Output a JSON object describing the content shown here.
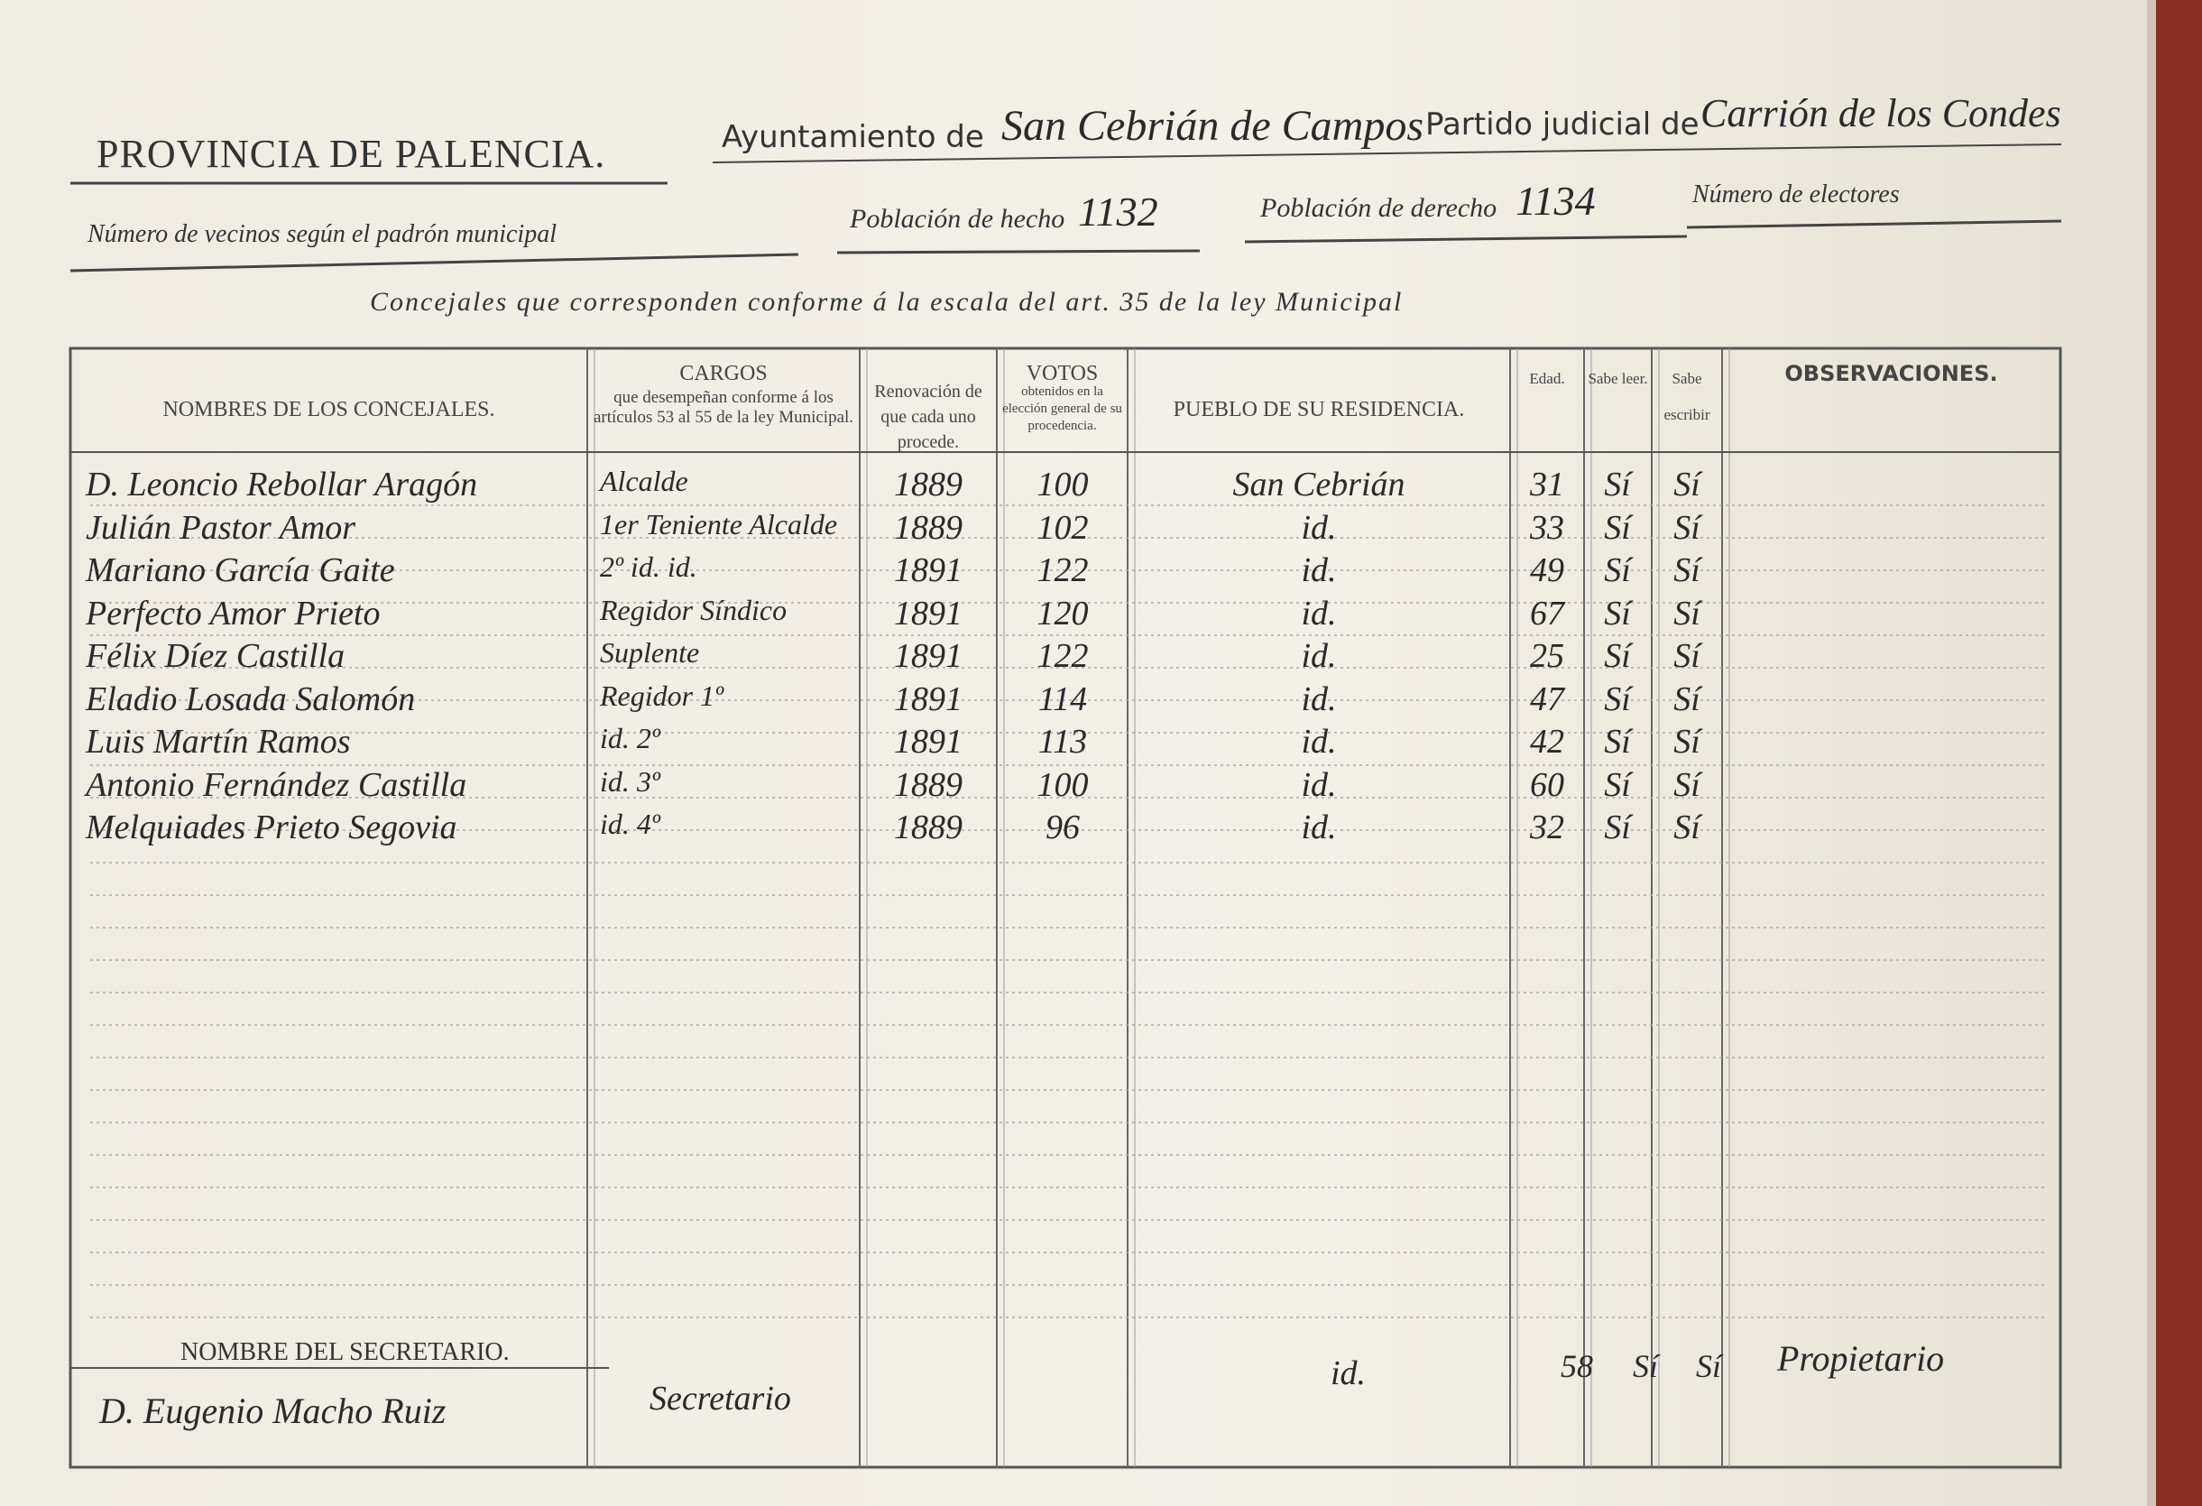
{
  "header": {
    "province": "PROVINCIA DE PALENCIA.",
    "ayuntamiento_label": "Ayuntamiento de",
    "ayuntamiento": "San Cebrián de Campos",
    "partido_label": "Partido judicial de",
    "partido": "Carrión de los Condes"
  },
  "census": {
    "vecinos_label": "Número de vecinos según el padrón municipal",
    "hecho_label": "Población de hecho",
    "hecho": "1132",
    "derecho_label": "Población de derecho",
    "derecho": "1134",
    "electores_label": "Número de electores"
  },
  "concejales_label": "Concejales que corresponden conforme á la escala del art. 35 de la ley Municipal",
  "table": {
    "columns": [
      {
        "title": "NOMBRES DE LOS CONCEJALES."
      },
      {
        "title": "CARGOS",
        "note": "que desempeñan conforme á los artículos 53 al 55 de la ley Municipal."
      },
      {
        "title": "Renovación de que cada uno procede."
      },
      {
        "title": "VOTOS",
        "note": "obtenidos en la elección general de su procedencia."
      },
      {
        "title": "PUEBLO DE SU RESIDENCIA."
      },
      {
        "title": "Edad."
      },
      {
        "title": "Sabe leer."
      },
      {
        "title": "Sabe escribir"
      },
      {
        "title": "OBSERVACIONES."
      }
    ],
    "rows": [
      [
        "D. Leoncio Rebollar Aragón",
        "Alcalde",
        "1889",
        "100",
        "San Cebrián",
        "31",
        "Sí",
        "Sí"
      ],
      [
        "Julián Pastor Amor",
        "1er Teniente Alcalde",
        "1889",
        "102",
        "id.",
        "33",
        "Sí",
        "Sí"
      ],
      [
        "Mariano García Gaite",
        "2º id. id.",
        "1891",
        "122",
        "id.",
        "49",
        "Sí",
        "Sí"
      ],
      [
        "Perfecto Amor Prieto",
        "Regidor Síndico",
        "1891",
        "120",
        "id.",
        "67",
        "Sí",
        "Sí"
      ],
      [
        "Félix Díez Castilla",
        "Suplente",
        "1891",
        "122",
        "id.",
        "25",
        "Sí",
        "Sí"
      ],
      [
        "Eladio Losada Salomón",
        "Regidor 1º",
        "1891",
        "114",
        "id.",
        "47",
        "Sí",
        "Sí"
      ],
      [
        "Luis Martín Ramos",
        "id. 2º",
        "1891",
        "113",
        "id.",
        "42",
        "Sí",
        "Sí"
      ],
      [
        "Antonio Fernández Castilla",
        "id. 3º",
        "1889",
        "100",
        "id.",
        "60",
        "Sí",
        "Sí"
      ],
      [
        "Melquiades Prieto Segovia",
        "id. 4º",
        "1889",
        "96",
        "id.",
        "32",
        "Sí",
        "Sí"
      ]
    ]
  },
  "secretario": {
    "label": "NOMBRE DEL SECRETARIO.",
    "name": "D. Eugenio Macho Ruiz",
    "cargo": "Secretario",
    "pueblo": "id.",
    "edad": "58",
    "leer": "Sí",
    "escribir": "Sí",
    "observaciones": "Propietario"
  }
}
